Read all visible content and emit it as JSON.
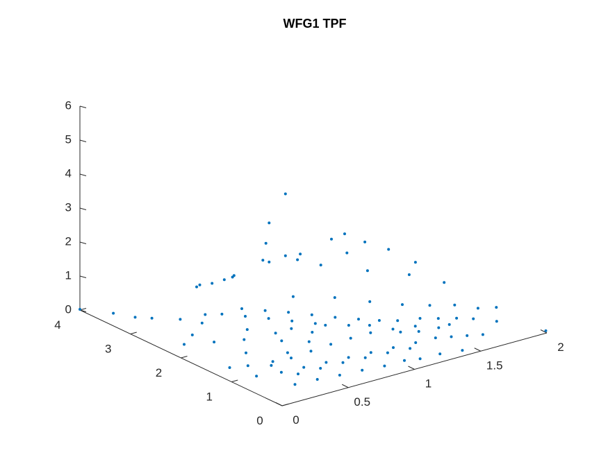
{
  "chart_data": {
    "type": "scatter",
    "title": "WFG1 TPF",
    "xlabel": "",
    "ylabel": "",
    "zlabel": "",
    "xlim": [
      0,
      2
    ],
    "ylim": [
      0,
      4
    ],
    "zlim": [
      0,
      6
    ],
    "x_ticks": [
      "0",
      "0.5",
      "1",
      "1.5",
      "2"
    ],
    "y_ticks": [
      "0",
      "1",
      "2",
      "3",
      "4"
    ],
    "z_ticks": [
      "0",
      "1",
      "2",
      "3",
      "4",
      "5",
      "6"
    ],
    "grid": false,
    "marker_color": "#0072BD",
    "series": [
      {
        "points": [
          [
            0.5,
            3.0,
            0.85
          ],
          [
            0.6,
            3.2,
            0.66
          ],
          [
            0.75,
            3.35,
            0.44
          ],
          [
            0.9,
            3.5,
            0.28
          ],
          [
            1.0,
            3.6,
            0.18
          ],
          [
            1.05,
            3.7,
            0.1
          ],
          [
            0.1,
            3.6,
            0.08
          ],
          [
            0.15,
            3.3,
            0.12
          ],
          [
            0.2,
            3.1,
            0.18
          ],
          [
            0.3,
            2.8,
            0.25
          ],
          [
            0.45,
            2.7,
            0.3
          ],
          [
            0.35,
            2.5,
            0.3
          ],
          [
            0.2,
            2.3,
            0.25
          ],
          [
            0.1,
            2.2,
            0.15
          ],
          [
            0.25,
            2.0,
            0.2
          ],
          [
            0.4,
            1.8,
            0.25
          ],
          [
            0.5,
            2.0,
            0.3
          ],
          [
            0.6,
            1.7,
            0.3
          ],
          [
            0.3,
            1.5,
            0.18
          ],
          [
            0.1,
            1.3,
            0.1
          ],
          [
            0.2,
            1.2,
            0.12
          ],
          [
            0.35,
            1.1,
            0.15
          ],
          [
            0.5,
            1.2,
            0.18
          ],
          [
            0.7,
            1.3,
            0.22
          ],
          [
            0.8,
            1.5,
            0.25
          ],
          [
            0.9,
            1.7,
            0.26
          ],
          [
            0.8,
            1.9,
            0.3
          ],
          [
            0.7,
            2.1,
            0.34
          ],
          [
            0.6,
            2.3,
            0.37
          ],
          [
            0.5,
            2.5,
            0.4
          ],
          [
            0.65,
            2.5,
            0.4
          ],
          [
            0.75,
            2.3,
            0.38
          ],
          [
            0.85,
            2.1,
            0.36
          ],
          [
            0.95,
            1.9,
            0.32
          ],
          [
            1.05,
            1.7,
            0.28
          ],
          [
            1.15,
            1.5,
            0.26
          ],
          [
            1.25,
            1.35,
            0.22
          ],
          [
            1.35,
            1.25,
            0.18
          ],
          [
            1.5,
            1.2,
            0.12
          ],
          [
            1.6,
            1.1,
            0.08
          ],
          [
            1.7,
            1.0,
            0.05
          ],
          [
            0.15,
            0.9,
            0.08
          ],
          [
            0.3,
            0.8,
            0.1
          ],
          [
            0.45,
            0.75,
            0.12
          ],
          [
            0.6,
            0.7,
            0.14
          ],
          [
            0.75,
            0.65,
            0.16
          ],
          [
            0.9,
            0.6,
            0.18
          ],
          [
            1.05,
            0.55,
            0.2
          ],
          [
            1.2,
            0.5,
            0.22
          ],
          [
            1.35,
            0.5,
            0.2
          ],
          [
            1.45,
            0.45,
            0.16
          ],
          [
            1.55,
            0.4,
            0.12
          ],
          [
            1.65,
            0.35,
            0.08
          ],
          [
            0.25,
            0.4,
            0.08
          ],
          [
            0.4,
            0.35,
            0.1
          ],
          [
            0.55,
            0.3,
            0.1
          ],
          [
            0.7,
            0.25,
            0.12
          ],
          [
            0.85,
            0.2,
            0.12
          ],
          [
            1.0,
            0.2,
            0.12
          ],
          [
            1.1,
            0.15,
            0.1
          ],
          [
            1.25,
            0.15,
            0.08
          ],
          [
            1.4,
            0.1,
            0.06
          ],
          [
            0.3,
            1.0,
            0.16
          ],
          [
            0.45,
            1.0,
            0.22
          ],
          [
            0.6,
            1.0,
            0.26
          ],
          [
            0.75,
            1.0,
            0.3
          ],
          [
            0.9,
            1.0,
            0.32
          ],
          [
            1.05,
            1.0,
            0.32
          ],
          [
            1.2,
            0.95,
            0.3
          ],
          [
            1.35,
            0.9,
            0.26
          ],
          [
            0.35,
            0.6,
            0.14
          ],
          [
            0.5,
            0.55,
            0.18
          ],
          [
            0.65,
            0.5,
            0.22
          ],
          [
            0.8,
            0.45,
            0.24
          ],
          [
            0.95,
            0.4,
            0.26
          ],
          [
            1.1,
            0.35,
            0.26
          ],
          [
            0.9,
            1.5,
            0.35
          ],
          [
            1.0,
            1.3,
            0.38
          ],
          [
            0.7,
            1.65,
            0.36
          ],
          [
            1.1,
            1.15,
            0.38
          ],
          [
            1.2,
            0.8,
            0.32
          ],
          [
            1.3,
            0.7,
            0.3
          ],
          [
            0.55,
            1.45,
            0.3
          ],
          [
            1.45,
            0.7,
            0.25
          ],
          [
            1.55,
            0.75,
            0.2
          ],
          [
            1.75,
            0.8,
            0.12
          ],
          [
            1.85,
            0.6,
            0.08
          ],
          [
            1.0,
            2.4,
            0.45
          ],
          [
            1.2,
            2.1,
            0.42
          ],
          [
            1.35,
            1.8,
            0.35
          ],
          [
            1.5,
            1.55,
            0.28
          ],
          [
            1.65,
            1.4,
            0.2
          ],
          [
            1.8,
            1.3,
            0.12
          ],
          [
            1.9,
            1.1,
            0.06
          ],
          [
            2.0,
            0.02,
            0.05
          ],
          [
            1.4,
            2.9,
            0.6
          ],
          [
            1.6,
            2.5,
            0.5
          ],
          [
            1.8,
            2.2,
            0.38
          ],
          [
            1.95,
            1.9,
            0.2
          ],
          [
            0.0,
            4.0,
            0.02
          ],
          [
            2.0,
            1.0,
            0.05
          ],
          [
            1.55,
            3.7,
            0.2
          ],
          [
            1.75,
            3.3,
            0.3
          ],
          [
            1.95,
            3.0,
            0.4
          ],
          [
            1.3,
            3.1,
            0.72
          ],
          [
            1.2,
            3.4,
            0.55
          ],
          [
            1.4,
            3.6,
            0.38
          ],
          [
            2.0,
            2.6,
            0.25
          ],
          [
            2.0,
            4.0,
            0.1
          ],
          [
            1.9,
            4.0,
            0.05
          ],
          [
            2.0,
            3.6,
            0.14
          ],
          [
            1.0,
            3.0,
            1.1
          ],
          [
            1.1,
            3.2,
            1.35
          ],
          [
            1.2,
            3.4,
            1.7
          ],
          [
            1.4,
            3.6,
            2.2
          ]
        ]
      }
    ]
  }
}
